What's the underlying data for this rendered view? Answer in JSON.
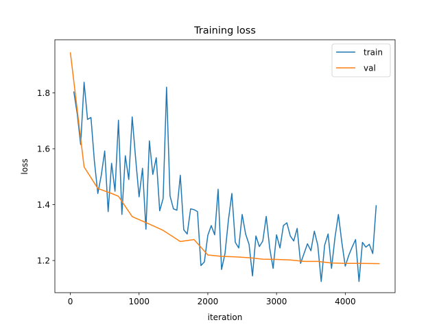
{
  "chart_data": {
    "type": "line",
    "title": "Training loss",
    "xlabel": "iteration",
    "ylabel": "loss",
    "xlim": [
      -225,
      4725
    ],
    "ylim": [
      1.085,
      1.99
    ],
    "xticks": [
      0,
      1000,
      2000,
      3000,
      4000
    ],
    "yticks": [
      1.2,
      1.4,
      1.6,
      1.8
    ],
    "xtick_labels": [
      "0",
      "1000",
      "2000",
      "3000",
      "4000"
    ],
    "ytick_labels": [
      "1.2",
      "1.4",
      "1.6",
      "1.8"
    ],
    "legend_position": "top-right",
    "grid": false,
    "series": [
      {
        "name": "train",
        "color": "#1f77b4",
        "x": [
          50,
          100,
          150,
          200,
          250,
          300,
          350,
          400,
          450,
          500,
          550,
          600,
          650,
          700,
          750,
          800,
          850,
          900,
          950,
          1000,
          1050,
          1100,
          1150,
          1200,
          1250,
          1300,
          1350,
          1400,
          1450,
          1500,
          1550,
          1600,
          1650,
          1700,
          1750,
          1800,
          1850,
          1900,
          1950,
          2000,
          2050,
          2100,
          2150,
          2200,
          2250,
          2300,
          2350,
          2400,
          2450,
          2500,
          2550,
          2600,
          2650,
          2700,
          2750,
          2800,
          2850,
          2900,
          2950,
          3000,
          3050,
          3100,
          3150,
          3200,
          3250,
          3300,
          3350,
          3400,
          3450,
          3500,
          3550,
          3600,
          3650,
          3700,
          3750,
          3800,
          3850,
          3900,
          3950,
          4000,
          4050,
          4100,
          4150,
          4200,
          4250,
          4300,
          4350,
          4400,
          4450
        ],
        "y": [
          1.805,
          1.725,
          1.615,
          1.838,
          1.705,
          1.712,
          1.555,
          1.44,
          1.505,
          1.592,
          1.375,
          1.548,
          1.448,
          1.702,
          1.365,
          1.575,
          1.49,
          1.714,
          1.565,
          1.428,
          1.53,
          1.312,
          1.628,
          1.508,
          1.568,
          1.378,
          1.422,
          1.82,
          1.432,
          1.385,
          1.38,
          1.505,
          1.31,
          1.295,
          1.385,
          1.382,
          1.375,
          1.182,
          1.195,
          1.29,
          1.325,
          1.292,
          1.455,
          1.168,
          1.225,
          1.345,
          1.44,
          1.265,
          1.245,
          1.365,
          1.295,
          1.258,
          1.145,
          1.288,
          1.25,
          1.27,
          1.358,
          1.245,
          1.172,
          1.292,
          1.245,
          1.325,
          1.335,
          1.288,
          1.27,
          1.315,
          1.19,
          1.225,
          1.26,
          1.235,
          1.305,
          1.255,
          1.125,
          1.255,
          1.295,
          1.172,
          1.282,
          1.365,
          1.265,
          1.18,
          1.218,
          1.248,
          1.275,
          1.125,
          1.265,
          1.248,
          1.258,
          1.225,
          1.398
        ]
      },
      {
        "name": "val",
        "color": "#ff7f0e",
        "x": [
          0,
          200,
          400,
          600,
          700,
          900,
          1200,
          1350,
          1600,
          1800,
          2000,
          2200,
          2400,
          2600,
          2800,
          3000,
          3200,
          3400,
          3600,
          3800,
          4000,
          4200,
          4500
        ],
        "y": [
          1.945,
          1.535,
          1.458,
          1.44,
          1.43,
          1.357,
          1.325,
          1.308,
          1.268,
          1.275,
          1.22,
          1.215,
          1.213,
          1.21,
          1.205,
          1.204,
          1.202,
          1.197,
          1.197,
          1.191,
          1.19,
          1.19,
          1.189
        ]
      }
    ]
  }
}
